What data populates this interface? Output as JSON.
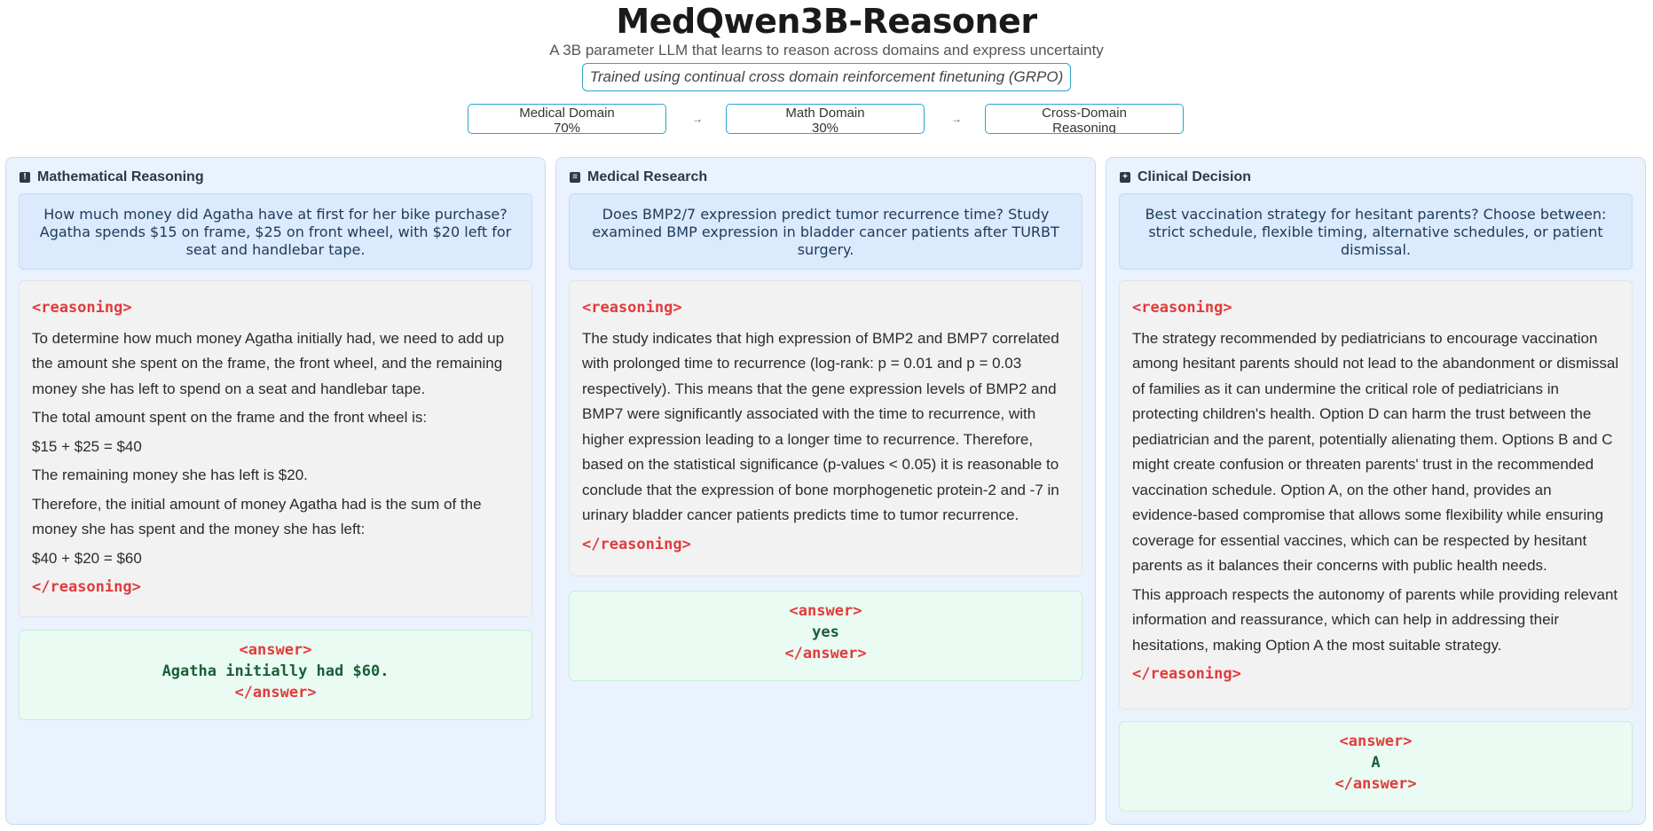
{
  "header": {
    "title": "MedQwen3B-Reasoner",
    "subtitle": "A 3B parameter LLM that learns to reason across domains and express uncertainty",
    "badge": "Trained using continual cross domain reinforcement finetuning (GRPO)"
  },
  "pipeline": {
    "steps": [
      {
        "line1": "Medical Domain",
        "line2": "70%"
      },
      {
        "line1": "Math Domain",
        "line2": "30%"
      },
      {
        "line1": "Cross-Domain",
        "line2": "Reasoning"
      }
    ],
    "arrow": "→"
  },
  "tags": {
    "reasoning_open": "<reasoning>",
    "reasoning_close": "</reasoning>",
    "answer_open": "<answer>",
    "answer_close": "</answer>"
  },
  "panels": [
    {
      "title": "Mathematical Reasoning",
      "icon": "alert-icon",
      "question": "How much money did Agatha have at first for her bike purchase? Agatha spends $15 on frame, $25 on front wheel, with $20 left for seat and handlebar tape.",
      "reasoning": [
        "To determine how much money Agatha initially had, we need to add up the amount she spent on the frame, the front wheel, and the remaining money she has left to spend on a seat and handlebar tape.",
        "The total amount spent on the frame and the front wheel is:",
        "$15 + $25 = $40",
        "The remaining money she has left is $20.",
        "Therefore, the initial amount of money Agatha had is the sum of the money she has spent and the money she has left:",
        "$40 + $20 = $60"
      ],
      "answer": "Agatha initially had $60."
    },
    {
      "title": "Medical Research",
      "icon": "document-icon",
      "question": "Does BMP2/7 expression predict tumor recurrence time? Study examined BMP expression in bladder cancer patients after TURBT surgery.",
      "reasoning": [
        "The study indicates that high expression of BMP2 and BMP7 correlated with prolonged time to recurrence (log-rank: p = 0.01 and p = 0.03 respectively). This means that the gene expression levels of BMP2 and BMP7 were significantly associated with the time to recurrence, with higher expression leading to a longer time to recurrence. Therefore, based on the statistical significance (p-values < 0.05) it is reasonable to conclude that the expression of bone morphogenetic protein-2 and -7 in urinary bladder cancer patients predicts time to tumor recurrence."
      ],
      "answer": "yes"
    },
    {
      "title": "Clinical Decision",
      "icon": "plus-square-icon",
      "question": "Best vaccination strategy for hesitant parents? Choose between: strict schedule, flexible timing, alternative schedules, or patient dismissal.",
      "reasoning": [
        "The strategy recommended by pediatricians to encourage vaccination among hesitant parents should not lead to the abandonment or dismissal of families as it can undermine the critical role of pediatricians in protecting children's health. Option D can harm the trust between the pediatrician and the parent, potentially alienating them. Options B and C might create confusion or threaten parents' trust in the recommended vaccination schedule. Option A, on the other hand, provides an evidence-based compromise that allows some flexibility while ensuring coverage for essential vaccines, which can be respected by hesitant parents as it balances their concerns with public health needs.",
        "This approach respects the autonomy of parents while providing relevant information and reassurance, which can help in addressing their hesitations, making Option A the most suitable strategy."
      ],
      "answer": "A"
    }
  ]
}
